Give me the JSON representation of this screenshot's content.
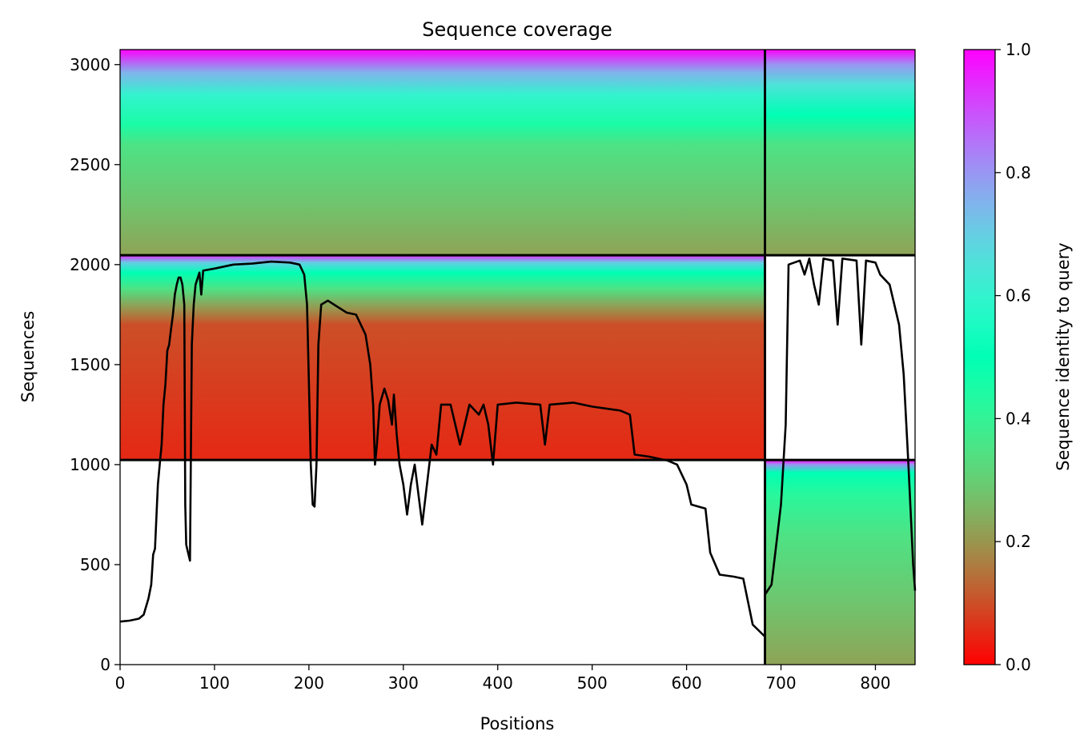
{
  "chart_data": {
    "type": "heatmap",
    "title": "Sequence coverage",
    "xlabel": "Positions",
    "ylabel": "Sequences",
    "xlim": [
      0,
      842
    ],
    "ylim": [
      0,
      3075
    ],
    "xticks": [
      0,
      100,
      200,
      300,
      400,
      500,
      600,
      700,
      800
    ],
    "yticks": [
      0,
      500,
      1000,
      1500,
      2000,
      2500,
      3000
    ],
    "grid": false,
    "colorbar": {
      "label": "Sequence identity to query",
      "range": [
        0,
        1
      ],
      "ticks": [
        "0.0",
        "0.2",
        "0.4",
        "0.6",
        "0.8",
        "1.0"
      ],
      "colormap": "rainbow_r"
    },
    "chain_boundaries": {
      "x": [
        683
      ],
      "y": [
        1023,
        2047
      ]
    },
    "blocks": [
      {
        "name": "chain-1-alignment",
        "x_range": [
          0,
          683
        ],
        "y_range": [
          1023,
          2047
        ],
        "identity_profile": [
          {
            "y": 1023,
            "identity": 0.05
          },
          {
            "y": 1700,
            "identity": 0.1
          },
          {
            "y": 1780,
            "identity": 0.2
          },
          {
            "y": 1880,
            "identity": 0.35
          },
          {
            "y": 1960,
            "identity": 0.5
          },
          {
            "y": 2010,
            "identity": 0.7
          },
          {
            "y": 2047,
            "identity": 0.95
          }
        ]
      },
      {
        "name": "paired-alignment-chain-1",
        "x_range": [
          0,
          683
        ],
        "y_range": [
          2047,
          3075
        ],
        "identity_profile": [
          {
            "y": 2047,
            "identity": 0.22
          },
          {
            "y": 2300,
            "identity": 0.28
          },
          {
            "y": 2600,
            "identity": 0.35
          },
          {
            "y": 2700,
            "identity": 0.45
          },
          {
            "y": 2850,
            "identity": 0.6
          },
          {
            "y": 2960,
            "identity": 0.75
          },
          {
            "y": 3075,
            "identity": 1.0
          }
        ]
      },
      {
        "name": "paired-alignment-chain-2",
        "x_range": [
          683,
          842
        ],
        "y_range": [
          2047,
          3075
        ],
        "identity_profile": [
          {
            "y": 2047,
            "identity": 0.22
          },
          {
            "y": 2300,
            "identity": 0.28
          },
          {
            "y": 2600,
            "identity": 0.35
          },
          {
            "y": 2750,
            "identity": 0.5
          },
          {
            "y": 2900,
            "identity": 0.65
          },
          {
            "y": 3000,
            "identity": 0.8
          },
          {
            "y": 3075,
            "identity": 1.0
          }
        ]
      },
      {
        "name": "chain-2-alignment",
        "x_range": [
          683,
          842
        ],
        "y_range": [
          0,
          1023
        ],
        "identity_profile": [
          {
            "y": 0,
            "identity": 0.22
          },
          {
            "y": 300,
            "identity": 0.28
          },
          {
            "y": 650,
            "identity": 0.35
          },
          {
            "y": 850,
            "identity": 0.42
          },
          {
            "y": 960,
            "identity": 0.5
          },
          {
            "y": 1000,
            "identity": 0.8
          },
          {
            "y": 1023,
            "identity": 1.0
          }
        ]
      }
    ],
    "series": [
      {
        "type": "line",
        "color": "#000000",
        "points": [
          [
            0,
            215
          ],
          [
            10,
            220
          ],
          [
            20,
            230
          ],
          [
            25,
            250
          ],
          [
            30,
            330
          ],
          [
            33,
            400
          ],
          [
            35,
            550
          ],
          [
            37,
            580
          ],
          [
            40,
            900
          ],
          [
            42,
            1000
          ],
          [
            44,
            1100
          ],
          [
            46,
            1300
          ],
          [
            48,
            1400
          ],
          [
            50,
            1570
          ],
          [
            52,
            1600
          ],
          [
            54,
            1680
          ],
          [
            56,
            1750
          ],
          [
            58,
            1850
          ],
          [
            60,
            1900
          ],
          [
            62,
            1935
          ],
          [
            64,
            1935
          ],
          [
            66,
            1900
          ],
          [
            68,
            1800
          ],
          [
            69,
            800
          ],
          [
            70,
            600
          ],
          [
            72,
            560
          ],
          [
            74,
            520
          ],
          [
            76,
            1600
          ],
          [
            78,
            1800
          ],
          [
            80,
            1900
          ],
          [
            82,
            1930
          ],
          [
            84,
            1960
          ],
          [
            86,
            1850
          ],
          [
            88,
            1970
          ],
          [
            100,
            1980
          ],
          [
            120,
            2000
          ],
          [
            140,
            2005
          ],
          [
            160,
            2015
          ],
          [
            180,
            2010
          ],
          [
            190,
            2000
          ],
          [
            195,
            1950
          ],
          [
            198,
            1800
          ],
          [
            200,
            1400
          ],
          [
            202,
            1000
          ],
          [
            204,
            800
          ],
          [
            206,
            790
          ],
          [
            208,
            1000
          ],
          [
            210,
            1600
          ],
          [
            213,
            1800
          ],
          [
            220,
            1820
          ],
          [
            240,
            1760
          ],
          [
            250,
            1750
          ],
          [
            260,
            1650
          ],
          [
            265,
            1500
          ],
          [
            268,
            1300
          ],
          [
            270,
            1000
          ],
          [
            272,
            1100
          ],
          [
            275,
            1300
          ],
          [
            278,
            1350
          ],
          [
            280,
            1380
          ],
          [
            284,
            1320
          ],
          [
            288,
            1200
          ],
          [
            290,
            1350
          ],
          [
            293,
            1150
          ],
          [
            296,
            1000
          ],
          [
            300,
            900
          ],
          [
            304,
            750
          ],
          [
            308,
            900
          ],
          [
            312,
            1000
          ],
          [
            316,
            850
          ],
          [
            320,
            700
          ],
          [
            325,
            900
          ],
          [
            330,
            1100
          ],
          [
            335,
            1050
          ],
          [
            340,
            1300
          ],
          [
            350,
            1300
          ],
          [
            360,
            1100
          ],
          [
            370,
            1300
          ],
          [
            380,
            1250
          ],
          [
            385,
            1300
          ],
          [
            390,
            1200
          ],
          [
            395,
            1000
          ],
          [
            400,
            1300
          ],
          [
            420,
            1310
          ],
          [
            445,
            1300
          ],
          [
            450,
            1100
          ],
          [
            455,
            1300
          ],
          [
            480,
            1310
          ],
          [
            500,
            1290
          ],
          [
            530,
            1270
          ],
          [
            540,
            1250
          ],
          [
            545,
            1050
          ],
          [
            560,
            1040
          ],
          [
            580,
            1020
          ],
          [
            590,
            1000
          ],
          [
            600,
            900
          ],
          [
            605,
            800
          ],
          [
            620,
            780
          ],
          [
            625,
            560
          ],
          [
            635,
            450
          ],
          [
            650,
            440
          ],
          [
            660,
            430
          ],
          [
            670,
            200
          ],
          [
            683,
            140
          ]
        ]
      },
      {
        "type": "line",
        "color": "#000000",
        "points": [
          [
            683,
            350
          ],
          [
            690,
            400
          ],
          [
            695,
            600
          ],
          [
            700,
            800
          ],
          [
            705,
            1200
          ],
          [
            708,
            2000
          ],
          [
            720,
            2020
          ],
          [
            725,
            1950
          ],
          [
            730,
            2030
          ],
          [
            735,
            1900
          ],
          [
            740,
            1800
          ],
          [
            745,
            2030
          ],
          [
            755,
            2020
          ],
          [
            760,
            1700
          ],
          [
            765,
            2030
          ],
          [
            780,
            2020
          ],
          [
            785,
            1600
          ],
          [
            790,
            2020
          ],
          [
            800,
            2010
          ],
          [
            805,
            1950
          ],
          [
            815,
            1900
          ],
          [
            825,
            1700
          ],
          [
            830,
            1450
          ],
          [
            835,
            1000
          ],
          [
            840,
            500
          ],
          [
            842,
            370
          ]
        ]
      }
    ]
  }
}
